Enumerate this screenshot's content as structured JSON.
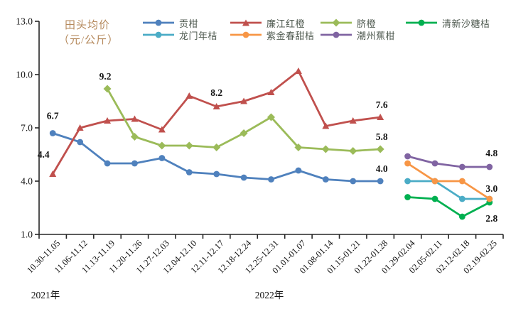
{
  "title": {
    "line1": "田头均价",
    "line2": "（元/公斤）"
  },
  "axis": {
    "y_tick_labels": [
      "1.0",
      "4.0",
      "7.0",
      "10.0",
      "13.0"
    ],
    "year_labels": [
      "2021年",
      "2022年"
    ]
  },
  "chart_data": {
    "type": "line",
    "title": "田头均价（元/公斤）",
    "xlabel": "",
    "ylabel": "元/公斤",
    "ylim": [
      1.0,
      13.0
    ],
    "y_ticks": [
      1.0,
      4.0,
      7.0,
      10.0,
      13.0
    ],
    "grid": false,
    "legend_position": "top",
    "categories": [
      "10.30-11.05",
      "11.06-11.12",
      "11.13-11.19",
      "11.20-11.26",
      "11.27-12.03",
      "12.04-12.10",
      "12.11-12.17",
      "12.18-12.24",
      "12.25-12.31",
      "01.01-01.07",
      "01.08-01.14",
      "01.15-01.21",
      "01.22-01.28",
      "01.29-02.04",
      "02.05-02.11",
      "02.12-02.18",
      "02.19-02.25"
    ],
    "series": [
      {
        "name": "贡柑",
        "color": "#4F81BD",
        "marker": "circle",
        "values": [
          6.7,
          6.2,
          5.0,
          5.0,
          5.3,
          4.5,
          4.4,
          4.2,
          4.1,
          4.6,
          4.1,
          4.0,
          4.0,
          null,
          null,
          null,
          null
        ]
      },
      {
        "name": "廉江红橙",
        "color": "#C0504D",
        "marker": "triangle",
        "values": [
          4.4,
          7.0,
          7.4,
          7.5,
          6.9,
          8.8,
          8.2,
          8.5,
          9.0,
          10.2,
          7.1,
          7.4,
          7.6,
          null,
          null,
          null,
          null
        ]
      },
      {
        "name": "脐橙",
        "color": "#9BBB59",
        "marker": "diamond",
        "values": [
          null,
          null,
          9.2,
          6.5,
          6.0,
          6.0,
          5.9,
          6.7,
          7.6,
          5.9,
          5.8,
          5.7,
          5.8,
          null,
          null,
          null,
          null
        ]
      },
      {
        "name": "清新沙糖桔",
        "color": "#00B050",
        "marker": "circle",
        "values": [
          null,
          null,
          null,
          null,
          null,
          null,
          null,
          null,
          null,
          null,
          null,
          null,
          null,
          3.1,
          3.0,
          2.0,
          2.8
        ]
      },
      {
        "name": "龙门年桔",
        "color": "#4BACC6",
        "marker": "circle",
        "values": [
          null,
          null,
          null,
          null,
          null,
          null,
          null,
          null,
          null,
          null,
          null,
          null,
          null,
          4.0,
          4.0,
          3.0,
          3.0
        ]
      },
      {
        "name": "紫金春甜桔",
        "color": "#F79646",
        "marker": "circle",
        "values": [
          null,
          null,
          null,
          null,
          null,
          null,
          null,
          null,
          null,
          null,
          null,
          null,
          null,
          5.0,
          4.0,
          4.0,
          3.0
        ]
      },
      {
        "name": "潮州蕉柑",
        "color": "#8064A2",
        "marker": "circle",
        "values": [
          null,
          null,
          null,
          null,
          null,
          null,
          null,
          null,
          null,
          null,
          null,
          null,
          null,
          5.4,
          5.0,
          4.8,
          4.8
        ]
      }
    ],
    "point_labels": [
      {
        "series": 0,
        "index": 0,
        "text": "6.7"
      },
      {
        "series": 1,
        "index": 0,
        "text": "4.4"
      },
      {
        "series": 2,
        "index": 2,
        "text": "9.2"
      },
      {
        "series": 1,
        "index": 6,
        "text": "8.2"
      },
      {
        "series": 1,
        "index": 12,
        "text": "7.6"
      },
      {
        "series": 2,
        "index": 12,
        "text": "5.8"
      },
      {
        "series": 0,
        "index": 12,
        "text": "4.0"
      },
      {
        "series": 6,
        "index": 16,
        "text": "4.8"
      },
      {
        "series": 5,
        "index": 16,
        "text": "3.0"
      },
      {
        "series": 3,
        "index": 16,
        "text": "2.8"
      }
    ],
    "legend_rows": [
      [
        0,
        1,
        2,
        3
      ],
      [
        4,
        5,
        6
      ]
    ]
  }
}
